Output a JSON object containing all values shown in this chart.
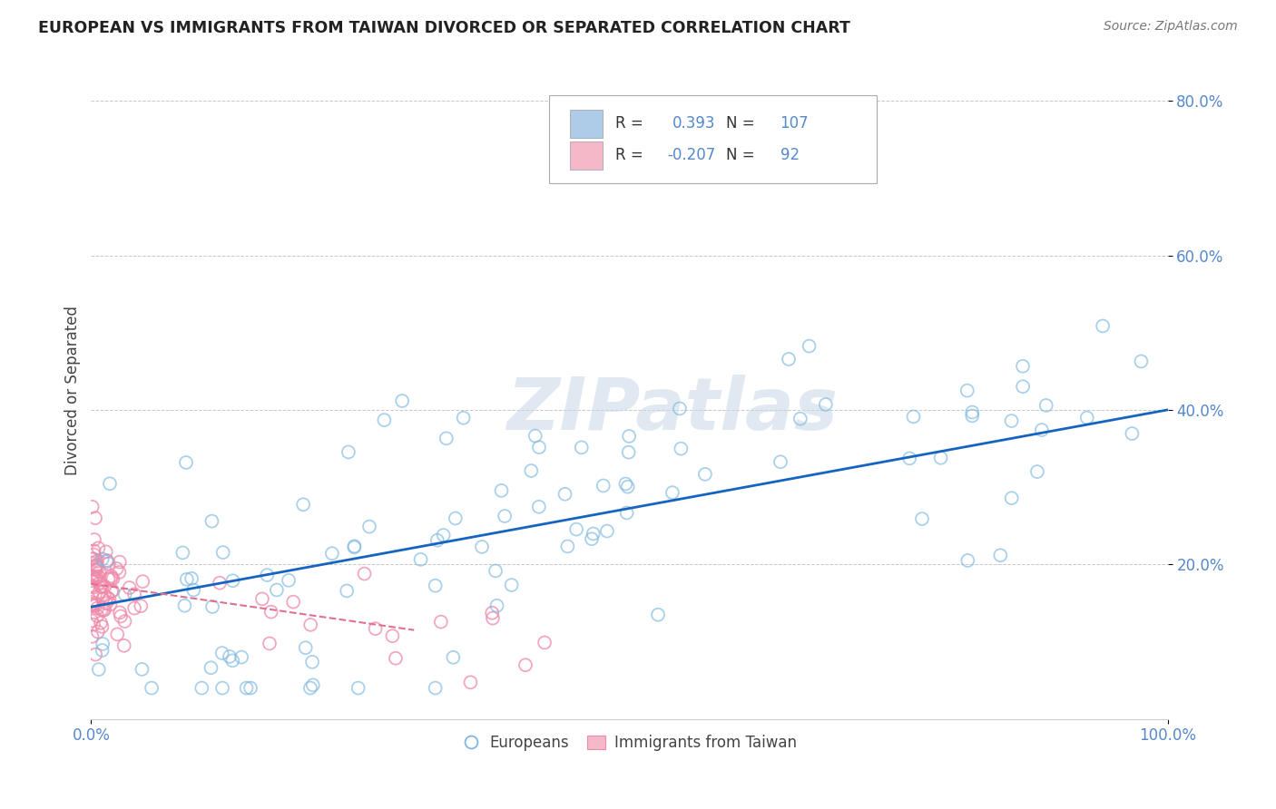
{
  "title": "EUROPEAN VS IMMIGRANTS FROM TAIWAN DIVORCED OR SEPARATED CORRELATION CHART",
  "source": "Source: ZipAtlas.com",
  "ylabel": "Divorced or Separated",
  "xlim": [
    0.0,
    1.0
  ],
  "ylim": [
    0.0,
    0.85
  ],
  "ytick_vals": [
    0.2,
    0.4,
    0.6,
    0.8
  ],
  "ytick_labels": [
    "20.0%",
    "40.0%",
    "60.0%",
    "80.0%"
  ],
  "xtick_vals": [
    0.0,
    1.0
  ],
  "xtick_labels": [
    "0.0%",
    "100.0%"
  ],
  "watermark": "ZIPatlas",
  "blue_color": "#7db8e0",
  "pink_color": "#f08aaa",
  "blue_line_color": "#1565c0",
  "pink_line_color": "#e07090",
  "grid_color": "#c8c8c8",
  "background_color": "#ffffff",
  "tick_color": "#5588cc",
  "legend_blue_fill": "#aecce8",
  "legend_pink_fill": "#f4b8c8",
  "legend_R1": "0.393",
  "legend_N1": "107",
  "legend_R2": "-0.207",
  "legend_N2": "92",
  "blue_line_x0": 0.0,
  "blue_line_y0": 0.145,
  "blue_line_x1": 1.0,
  "blue_line_y1": 0.4,
  "pink_line_x0": 0.0,
  "pink_line_y0": 0.175,
  "pink_line_x1": 0.3,
  "pink_line_y1": 0.115
}
